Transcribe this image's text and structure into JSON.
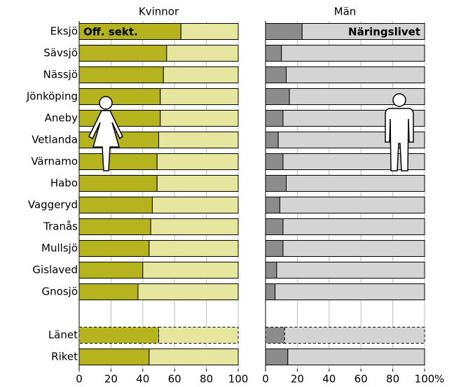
{
  "chart_data": [
    {
      "type": "stacked-bar-horizontal",
      "title": "Kvinnor",
      "categories": [
        "Eksjö",
        "Sävsjö",
        "Nässjö",
        "Jönköping",
        "Aneby",
        "Vetlanda",
        "Värnamo",
        "Habo",
        "Vaggeryd",
        "Tranås",
        "Mullsjö",
        "Gislaved",
        "Gnosjö",
        null,
        "Länet",
        "Riket"
      ],
      "series": [
        {
          "name": "Off. sekt.",
          "color": "#b5b41e",
          "values": [
            64,
            55,
            53,
            51,
            51,
            50,
            49,
            49,
            46,
            45,
            44,
            40,
            37,
            null,
            50,
            44
          ]
        },
        {
          "color": "#e6e69f",
          "values": [
            36,
            45,
            47,
            49,
            49,
            50,
            51,
            51,
            54,
            55,
            56,
            60,
            63,
            null,
            50,
            56
          ]
        }
      ],
      "xlim": [
        0,
        100
      ],
      "xticks": [
        0,
        20,
        40,
        60,
        80,
        100
      ],
      "grid": true,
      "dashed_rows": [
        14
      ]
    },
    {
      "type": "stacked-bar-horizontal",
      "title": "Män",
      "series": [
        {
          "color": "#8c8c8c",
          "values": [
            23,
            10,
            13,
            15,
            11,
            8,
            11,
            13,
            9,
            11,
            11,
            7,
            6,
            null,
            12,
            14
          ]
        },
        {
          "name": "Näringslivet",
          "color": "#d4d4d4",
          "values": [
            77,
            90,
            87,
            85,
            89,
            92,
            89,
            87,
            91,
            89,
            89,
            93,
            94,
            null,
            88,
            86
          ]
        }
      ],
      "xlim": [
        0,
        100
      ],
      "xticks": [
        0,
        20,
        40,
        60,
        80,
        100
      ],
      "grid": true,
      "dashed_rows": [
        14
      ],
      "x_unit": "%"
    }
  ]
}
